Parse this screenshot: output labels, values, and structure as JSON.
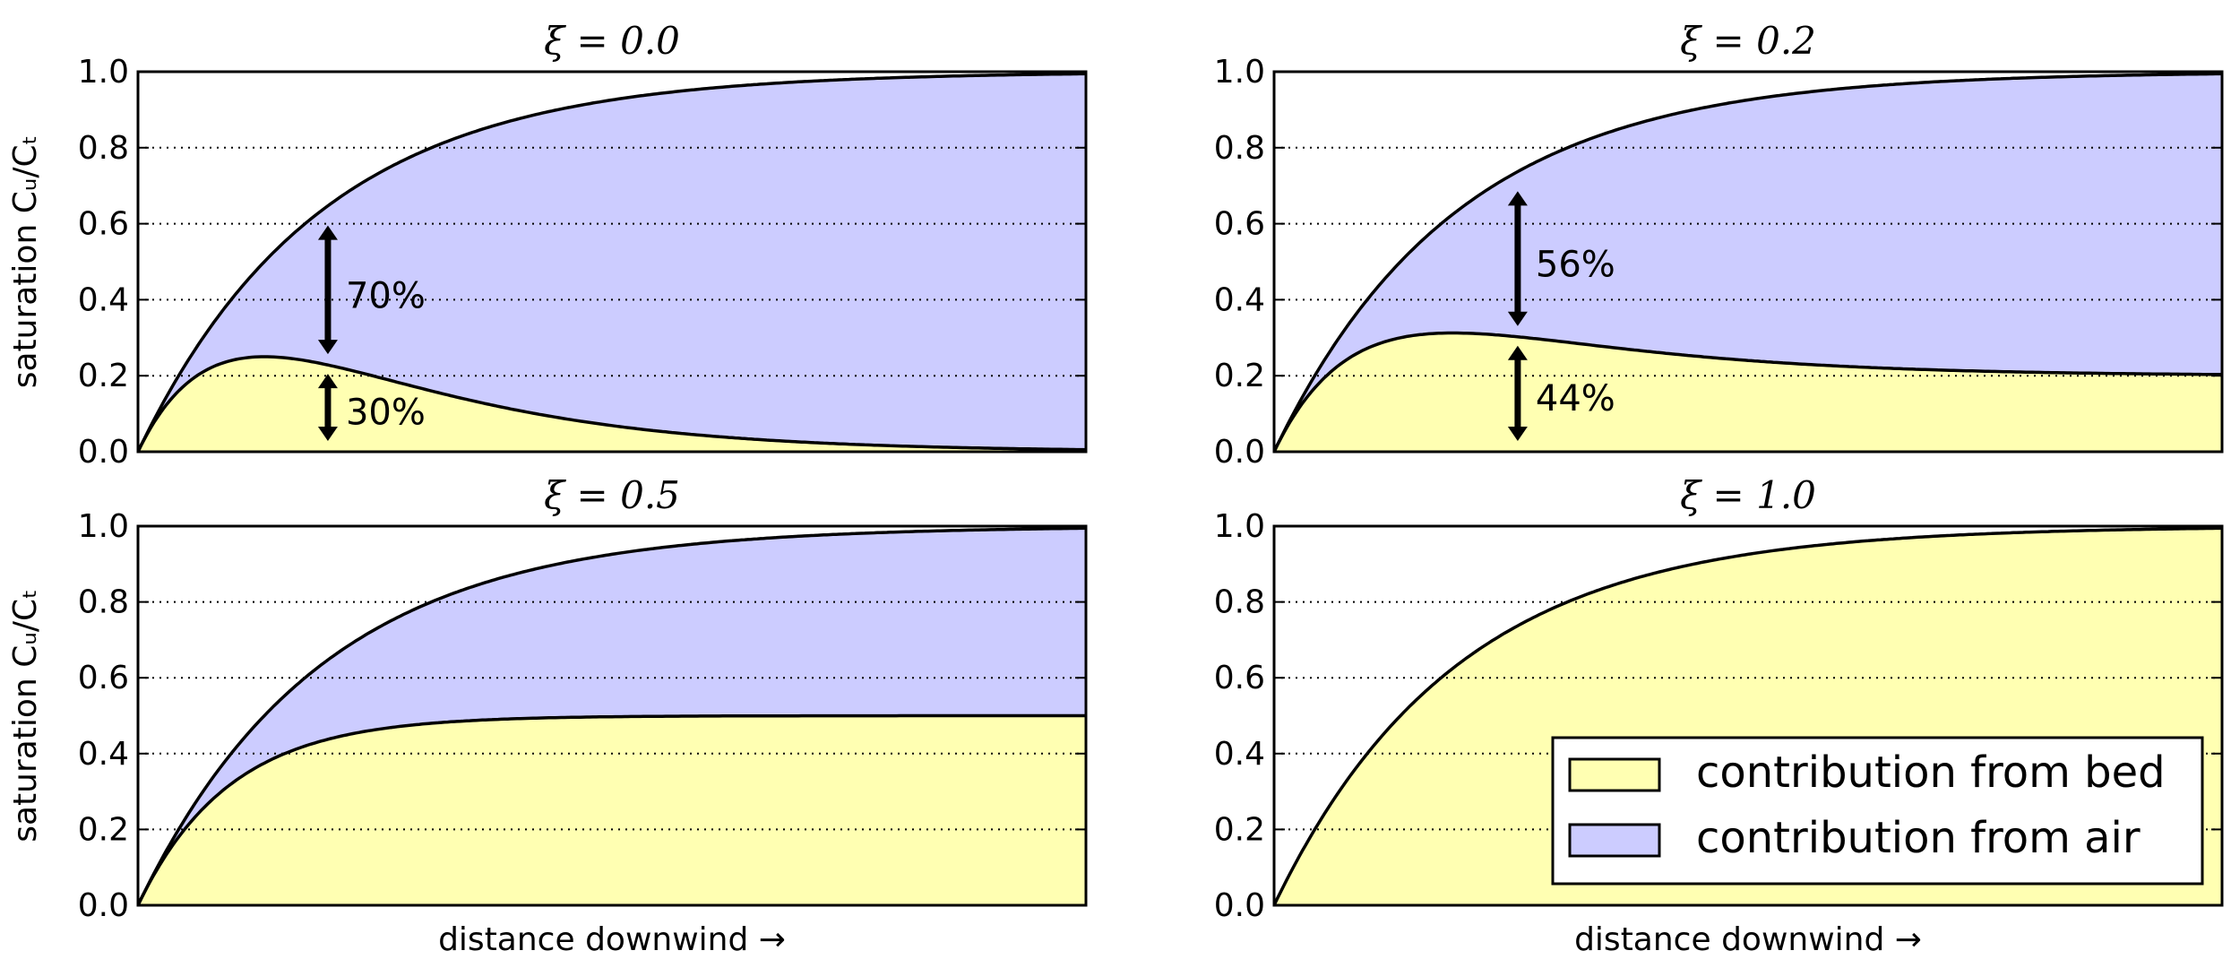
{
  "colors": {
    "bed_fill": "#ffffb2",
    "air_fill": "#ccccff",
    "line": "#000000",
    "grid": "#000000"
  },
  "legend": {
    "bed_label": "contribution from bed",
    "air_label": "contribution from air",
    "placement": "lower-right"
  },
  "chart_data": [
    {
      "type": "area",
      "title": "ξ = 0.0",
      "xi": 0.0,
      "xlabel": "",
      "ylabel": "saturation Cᵤ/Cₜ",
      "ylim": [
        0.0,
        1.0
      ],
      "yticks": [
        "0.0",
        "0.2",
        "0.4",
        "0.6",
        "0.8",
        "1.0"
      ],
      "grid": "horizontal-dotted",
      "series": [
        {
          "name": "contribution from bed",
          "shape": "rises to about 0.25 then decays toward 0"
        },
        {
          "name": "contribution from air",
          "shape": "fills from bed curve up to total saturation (approaches 1.0)"
        }
      ],
      "annotations": [
        {
          "text": "70%",
          "applies_to": "contribution from air"
        },
        {
          "text": "30%",
          "applies_to": "contribution from bed"
        }
      ]
    },
    {
      "type": "area",
      "title": "ξ = 0.2",
      "xi": 0.2,
      "xlabel": "",
      "ylabel": "",
      "ylim": [
        0.0,
        1.0
      ],
      "yticks": [
        "0.0",
        "0.2",
        "0.4",
        "0.6",
        "0.8",
        "1.0"
      ],
      "grid": "horizontal-dotted",
      "series": [
        {
          "name": "contribution from bed",
          "shape": "rises to about 0.31 then settles at 0.2"
        },
        {
          "name": "contribution from air",
          "shape": "fills from bed curve up to total saturation (approaches 1.0)"
        }
      ],
      "annotations": [
        {
          "text": "56%",
          "applies_to": "contribution from air"
        },
        {
          "text": "44%",
          "applies_to": "contribution from bed"
        }
      ]
    },
    {
      "type": "area",
      "title": "ξ = 0.5",
      "xi": 0.5,
      "xlabel": "distance downwind →",
      "ylabel": "saturation Cᵤ/Cₜ",
      "ylim": [
        0.0,
        1.0
      ],
      "yticks": [
        "0.0",
        "0.2",
        "0.4",
        "0.6",
        "0.8",
        "1.0"
      ],
      "grid": "horizontal-dotted",
      "series": [
        {
          "name": "contribution from bed",
          "shape": "rises and levels off at 0.5"
        },
        {
          "name": "contribution from air",
          "shape": "fills from bed curve up to total saturation (approaches 1.0)"
        }
      ],
      "annotations": []
    },
    {
      "type": "area",
      "title": "ξ = 1.0",
      "xi": 1.0,
      "xlabel": "distance downwind →",
      "ylabel": "",
      "ylim": [
        0.0,
        1.0
      ],
      "yticks": [
        "0.0",
        "0.2",
        "0.4",
        "0.6",
        "0.8",
        "1.0"
      ],
      "grid": "horizontal-dotted",
      "series": [
        {
          "name": "contribution from bed",
          "shape": "equals total saturation, approaches 1.0"
        },
        {
          "name": "contribution from air",
          "shape": "zero"
        }
      ],
      "annotations": []
    }
  ]
}
